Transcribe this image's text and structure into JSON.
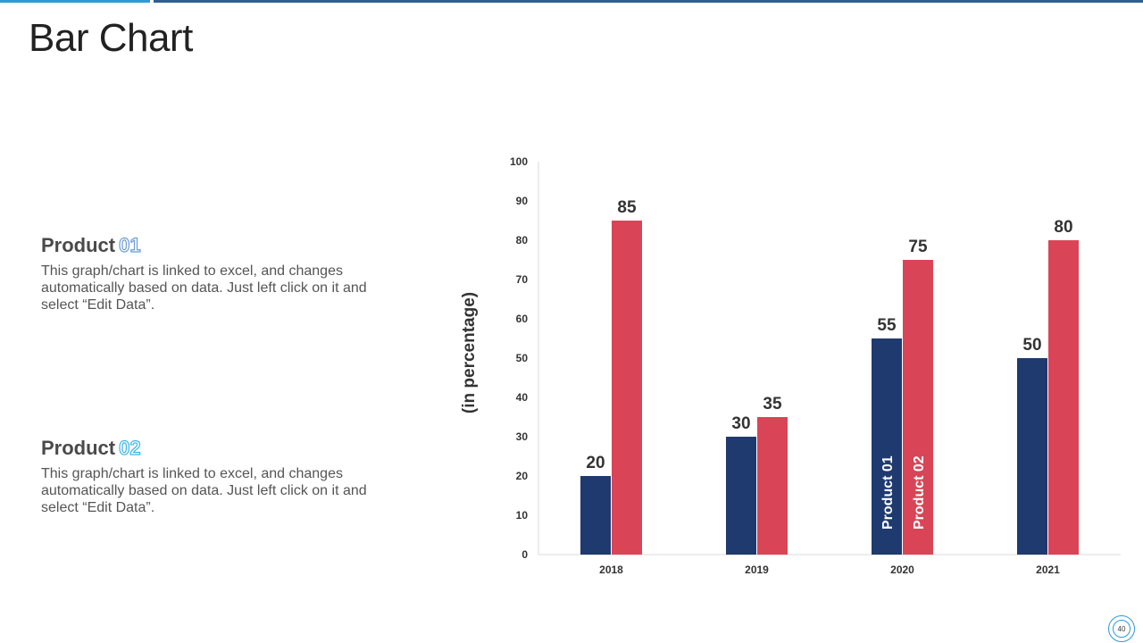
{
  "slide": {
    "title": "Bar Chart",
    "page_number": "40"
  },
  "products": [
    {
      "label": "Product",
      "number": "01",
      "description": "This graph/chart is linked to excel, and changes automatically based on data. Just left click on it and select “Edit Data”."
    },
    {
      "label": "Product",
      "number": "02",
      "description": "This graph/chart is linked to excel, and changes automatically based on data. Just left click on it and select “Edit Data”."
    }
  ],
  "colors": {
    "accent": "#2e9bd6",
    "series1": "#1f3a6e",
    "series2": "#d94556"
  },
  "chart_data": {
    "type": "bar",
    "title": "",
    "xlabel": "",
    "ylabel": "(in percentage)",
    "ylim": [
      0,
      100
    ],
    "yticks": [
      0,
      10,
      20,
      30,
      40,
      50,
      60,
      70,
      80,
      90,
      100
    ],
    "categories": [
      "2018",
      "2019",
      "2020",
      "2021"
    ],
    "series": [
      {
        "name": "Product 01",
        "values": [
          20,
          30,
          55,
          50
        ],
        "color": "#1f3a6e"
      },
      {
        "name": "Product 02",
        "values": [
          85,
          35,
          75,
          80
        ],
        "color": "#d94556"
      }
    ],
    "series_name_labels_in_category": "2020",
    "grid": false
  }
}
